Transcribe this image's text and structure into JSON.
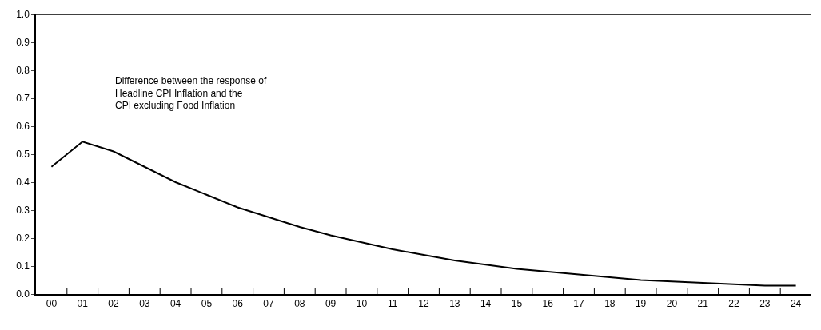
{
  "chart_data": {
    "type": "line",
    "categories": [
      "00",
      "01",
      "02",
      "03",
      "04",
      "05",
      "06",
      "07",
      "08",
      "09",
      "10",
      "11",
      "12",
      "13",
      "14",
      "15",
      "16",
      "17",
      "18",
      "19",
      "20",
      "21",
      "22",
      "23",
      "24"
    ],
    "series": [
      {
        "color": "#000000",
        "values": [
          0.455,
          0.545,
          0.51,
          0.455,
          0.4,
          0.355,
          0.31,
          0.275,
          0.24,
          0.21,
          0.185,
          0.16,
          0.14,
          0.12,
          0.105,
          0.09,
          0.08,
          0.07,
          0.06,
          0.05,
          0.045,
          0.04,
          0.035,
          0.03,
          0.03
        ]
      }
    ],
    "ylim": [
      0,
      1
    ],
    "yticks": [
      {
        "value": 0,
        "label": "0.0"
      },
      0.1,
      0.2,
      0.3,
      0.4,
      0.5,
      0.6,
      0.7,
      0.8,
      0.9,
      {
        "value": 1,
        "label": "1.0"
      }
    ],
    "annotations": [
      "Difference between the response of\nHeadline CPI Inflation and the\nCPI excluding Food Inflation"
    ],
    "marker": "none",
    "line_style": "solid"
  }
}
